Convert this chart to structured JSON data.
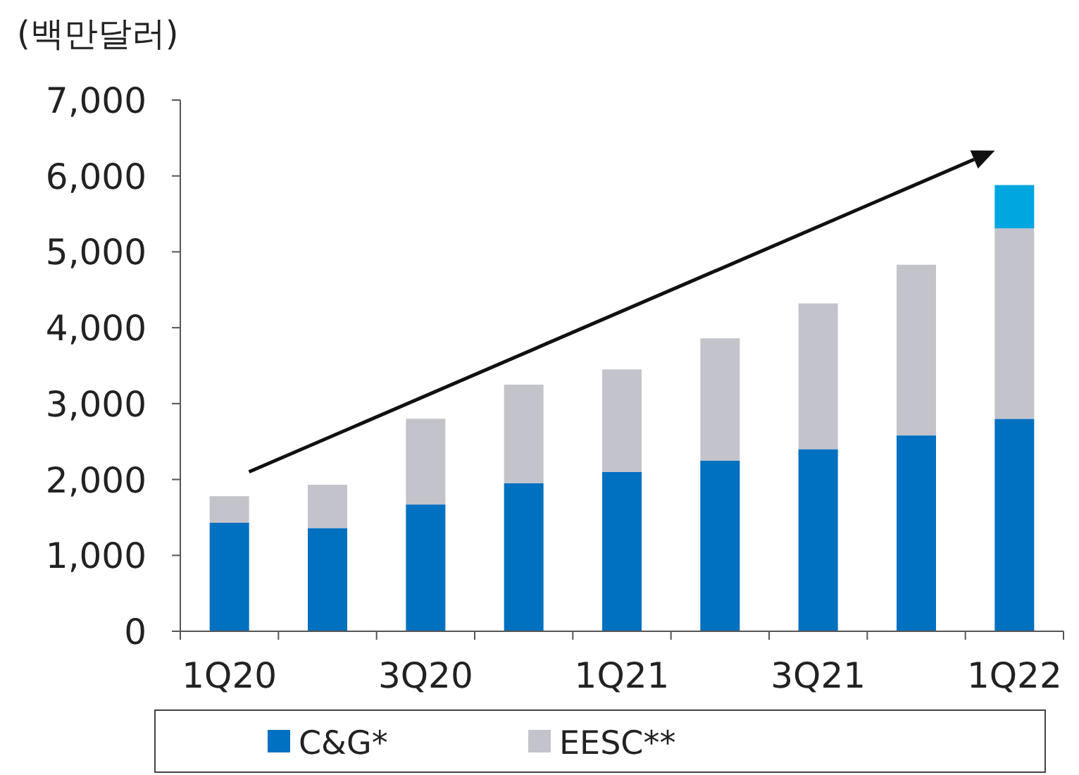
{
  "chart_data": {
    "type": "bar",
    "stacked": true,
    "ylabel": "(백만달러)",
    "categories": [
      "1Q20",
      null,
      "3Q20",
      null,
      "1Q21",
      null,
      "3Q21",
      null,
      "1Q22"
    ],
    "series": [
      {
        "name": "C&G*",
        "color": "#0070c0",
        "values": [
          1430,
          1360,
          1670,
          1950,
          2100,
          2250,
          2400,
          2580,
          2800
        ]
      },
      {
        "name": "EESC**",
        "color": "#c3c3cb",
        "values": [
          350,
          570,
          1130,
          1300,
          1350,
          1610,
          1920,
          2250,
          2510
        ]
      },
      {
        "color": "#00a6e0",
        "values": [
          null,
          null,
          null,
          null,
          null,
          null,
          null,
          null,
          570
        ]
      }
    ],
    "ylim": [
      0,
      7000
    ],
    "yticks": [
      {
        "value": 0,
        "label": "0"
      },
      {
        "value": 1000,
        "label": "1,000"
      },
      {
        "value": 2000,
        "label": "2,000"
      },
      {
        "value": 3000,
        "label": "3,000"
      },
      {
        "value": 4000,
        "label": "4,000"
      },
      {
        "value": 5000,
        "label": "5,000"
      },
      {
        "value": 6000,
        "label": "6,000"
      },
      {
        "value": 7000,
        "label": "7,000"
      }
    ],
    "legend": "bottom",
    "grid": false
  }
}
